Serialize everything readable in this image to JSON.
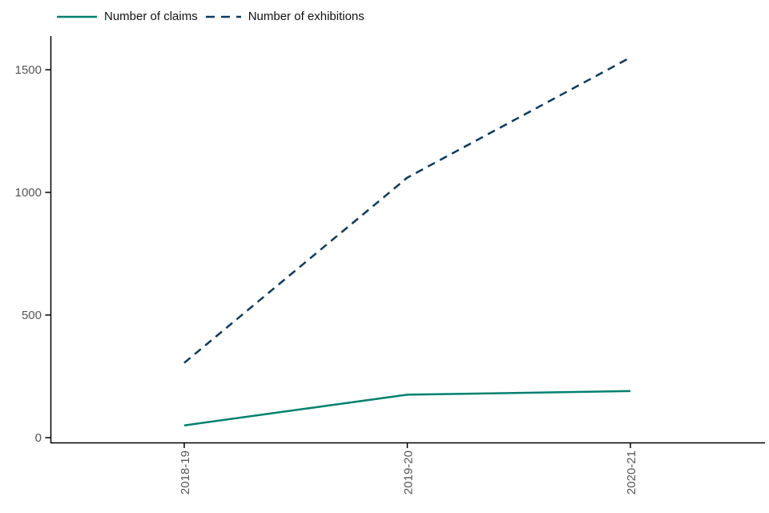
{
  "chart_data": {
    "type": "line",
    "title": "",
    "xlabel": "",
    "ylabel": "",
    "categories": [
      "2018-19",
      "2019-20",
      "2020-21"
    ],
    "series": [
      {
        "name": "Number of claims",
        "values": [
          50,
          175,
          190
        ],
        "color": "#00816e",
        "style": "solid"
      },
      {
        "name": "Number of exhibitions",
        "values": [
          305,
          1060,
          1550
        ],
        "color": "#0d3a5e",
        "style": "dashed"
      }
    ],
    "y_ticks": [
      0,
      500,
      1000,
      1500
    ],
    "ylim": [
      0,
      1550
    ],
    "grid": false,
    "legend_position": "top-left",
    "axis_color": "#000000",
    "tick_label_color": "#555555"
  }
}
